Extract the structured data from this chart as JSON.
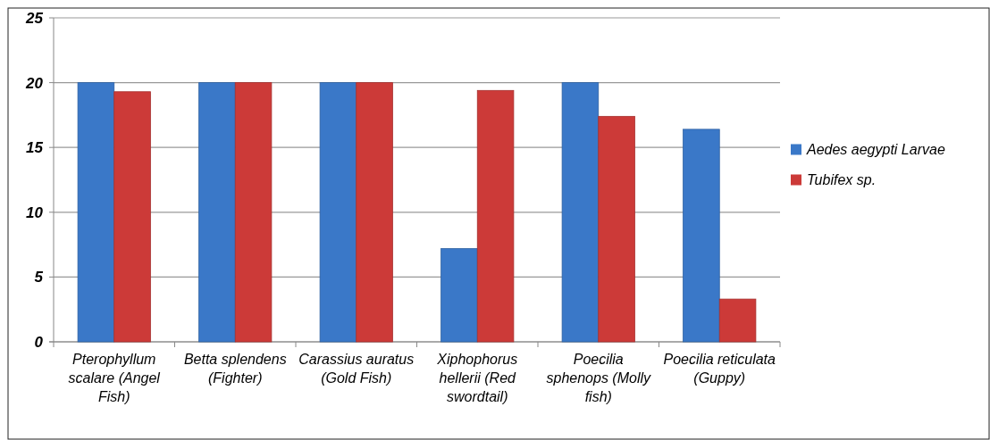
{
  "chart_data": {
    "type": "bar",
    "categories": [
      "Pterophyllum scalare (Angel Fish)",
      "Betta splendens (Fighter)",
      "Carassius auratus (Gold Fish)",
      "Xiphophorus hellerii (Red swordtail)",
      "Poecilia sphenops (Molly fish)",
      "Poecilia reticulata (Guppy)"
    ],
    "series": [
      {
        "name": "Aedes aegypti Larvae",
        "color": "#3a78c8",
        "values": [
          20,
          20,
          20,
          7.2,
          20,
          16.4
        ]
      },
      {
        "name": "Tubifex sp.",
        "color": "#cc3a38",
        "values": [
          19.3,
          20,
          20,
          19.4,
          17.4,
          3.3
        ]
      }
    ],
    "ylim": [
      0,
      25
    ],
    "yticks": [
      0,
      5,
      10,
      15,
      20,
      25
    ],
    "grid": "y",
    "legend": "right"
  }
}
